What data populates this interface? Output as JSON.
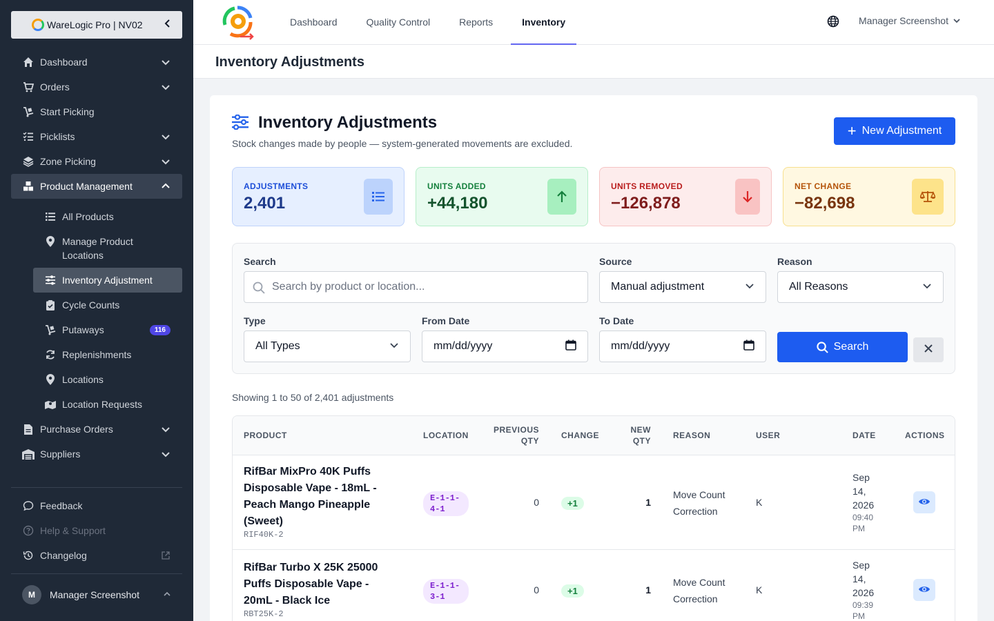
{
  "sidebar": {
    "brand": "WareLogic Pro | NV02",
    "items": [
      {
        "label": "Dashboard",
        "icon": "home-icon"
      },
      {
        "label": "Orders",
        "icon": "cart-icon"
      },
      {
        "label": "Start Picking",
        "icon": "dolly-icon"
      },
      {
        "label": "Picklists",
        "icon": "list-check-icon"
      },
      {
        "label": "Zone Picking",
        "icon": "layers-icon"
      },
      {
        "label": "Product Management",
        "icon": "boxes-icon"
      }
    ],
    "sub_items": [
      {
        "label": "All Products",
        "icon": "list-icon"
      },
      {
        "label": "Manage Product Locations",
        "icon": "pin-icon"
      },
      {
        "label": "Inventory Adjustment",
        "icon": "sliders-icon"
      },
      {
        "label": "Cycle Counts",
        "icon": "clipboard-check-icon"
      },
      {
        "label": "Putaways",
        "icon": "dolly-icon",
        "badge": "116"
      },
      {
        "label": "Replenishments",
        "icon": "refresh-icon"
      },
      {
        "label": "Locations",
        "icon": "pin-icon"
      },
      {
        "label": "Location Requests",
        "icon": "map-pin-icon"
      }
    ],
    "after_items": [
      {
        "label": "Purchase Orders",
        "icon": "file-icon"
      },
      {
        "label": "Suppliers",
        "icon": "warehouse-icon"
      }
    ],
    "bottom": {
      "feedback": "Feedback",
      "help": "Help & Support",
      "changelog": "Changelog"
    },
    "user": {
      "initial": "M",
      "name": "Manager Screenshot"
    }
  },
  "topbar": {
    "tabs": [
      "Dashboard",
      "Quality Control",
      "Reports",
      "Inventory"
    ],
    "active_tab": "Inventory",
    "user": "Manager Screenshot"
  },
  "page_header": {
    "title": "Inventory Adjustments"
  },
  "card": {
    "title": "Inventory Adjustments",
    "subtitle": "Stock changes made by people — system-generated movements are excluded.",
    "new_button": "New Adjustment"
  },
  "stats": [
    {
      "label": "ADJUSTMENTS",
      "value": "2,401",
      "icon": "list-icon",
      "color": "#1d4ed8"
    },
    {
      "label": "UNITS ADDED",
      "value": "+44,180",
      "icon": "arrow-up-icon",
      "color": "#15803d"
    },
    {
      "label": "UNITS REMOVED",
      "value": "−126,878",
      "icon": "arrow-down-icon",
      "color": "#b91c1c"
    },
    {
      "label": "NET CHANGE",
      "value": "−82,698",
      "icon": "scale-icon",
      "color": "#b45309"
    }
  ],
  "filters": {
    "search_label": "Search",
    "search_placeholder": "Search by product or location...",
    "source_label": "Source",
    "source_value": "Manual adjustment",
    "reason_label": "Reason",
    "reason_value": "All Reasons",
    "type_label": "Type",
    "type_value": "All Types",
    "from_label": "From Date",
    "from_value": "mm/dd/yyyy",
    "to_label": "To Date",
    "to_value": "mm/dd/yyyy",
    "search_button": "Search"
  },
  "showing": "Showing 1 to 50 of 2,401 adjustments",
  "table": {
    "headers": {
      "product": "PRODUCT",
      "location": "LOCATION",
      "previous_qty_1": "PREVIOUS",
      "previous_qty_2": "QTY",
      "change": "CHANGE",
      "new_qty_1": "NEW",
      "new_qty_2": "QTY",
      "reason": "REASON",
      "user": "USER",
      "date": "DATE",
      "actions": "ACTIONS"
    },
    "rows": [
      {
        "product": "RifBar MixPro 40K Puffs Disposable Vape - 18mL - Peach Mango Pineapple (Sweet)",
        "sku": "RIF40K-2",
        "location": "E-1-1-4-1",
        "previous_qty": "0",
        "change": "+1",
        "new_qty": "1",
        "reason": "Move Count Correction",
        "user": "K",
        "date": "Sep 14, 2026",
        "time": "09:40 PM"
      },
      {
        "product": "RifBar Turbo X 25K 25000 Puffs Disposable Vape - 20mL - Black Ice",
        "sku": "RBT25K-2",
        "location": "E-1-1-3-1",
        "previous_qty": "0",
        "change": "+1",
        "new_qty": "1",
        "reason": "Move Count Correction",
        "user": "K",
        "date": "Sep 14, 2026",
        "time": "09:39 PM"
      }
    ]
  }
}
